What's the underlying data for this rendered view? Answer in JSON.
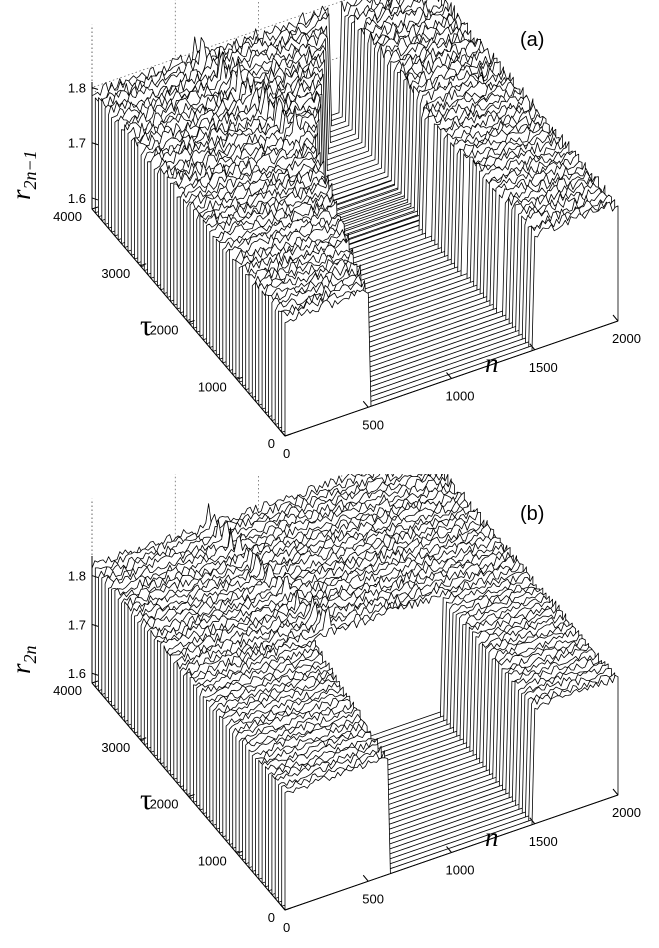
{
  "chart_data": [
    {
      "type": "area",
      "panel_label": "(a)",
      "ylabel": "r",
      "ylabel_sub": "2n−1",
      "xlabel": "n",
      "tau_label": "τ",
      "n_ticks": [
        "0",
        "500",
        "1000",
        "1500",
        "2000"
      ],
      "n_range": [
        0,
        2000
      ],
      "tau_ticks": [
        "0",
        "1000",
        "2000",
        "3000",
        "4000"
      ],
      "tau_range": [
        0,
        4000
      ],
      "r_ticks": [
        "1.6",
        "1.7",
        "1.8"
      ],
      "r_range": [
        1.58,
        1.81
      ],
      "grid": true,
      "initial_block": {
        "n_start": 500,
        "n_end": 1500,
        "r_min": 1.58,
        "r_max": 1.64
      },
      "series_note": "waterfall of r_{2n-1}(n) sampled at successive tau values"
    },
    {
      "type": "area",
      "panel_label": "(b)",
      "ylabel": "r",
      "ylabel_sub": "2n",
      "xlabel": "n",
      "tau_label": "τ",
      "n_ticks": [
        "0",
        "500",
        "1000",
        "1500",
        "2000"
      ],
      "n_range": [
        0,
        2000
      ],
      "tau_ticks": [
        "0",
        "1000",
        "2000",
        "3000",
        "4000"
      ],
      "tau_range": [
        0,
        4000
      ],
      "r_ticks": [
        "1.6",
        "1.7",
        "1.8"
      ],
      "r_range": [
        1.58,
        1.84
      ],
      "grid": true,
      "initial_block": {
        "n_start": 500,
        "n_end": 1500,
        "r_min": 1.58,
        "r_max": 1.82
      },
      "series_note": "waterfall of r_{2n}(n) sampled at successive tau values"
    }
  ]
}
